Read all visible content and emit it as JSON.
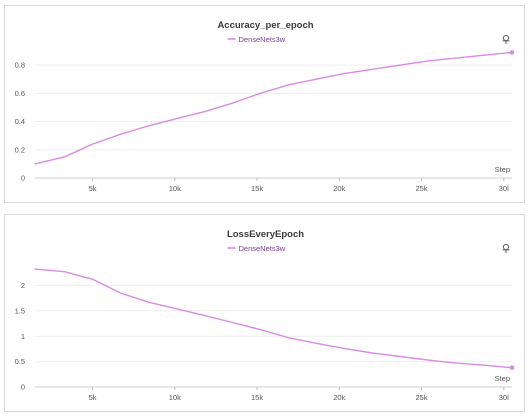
{
  "theme": {
    "series_color": "#d98be3",
    "legend_text_color": "#7a3f98"
  },
  "panels": [
    {
      "pin_icon": "pin-icon"
    },
    {
      "pin_icon": "pin-icon"
    }
  ],
  "chart_data": [
    {
      "type": "line",
      "title": "Accuracy_per_epoch",
      "xlabel": "Step",
      "ylabel": "",
      "xlim": [
        1500,
        30500
      ],
      "ylim": [
        0,
        0.9
      ],
      "x_ticks": [
        5000,
        10000,
        15000,
        20000,
        25000,
        30000
      ],
      "x_tick_labels": [
        "5k",
        "10k",
        "15k",
        "20k",
        "25k",
        "30l"
      ],
      "y_ticks": [
        0,
        0.2,
        0.4,
        0.6,
        0.8
      ],
      "y_tick_labels": [
        "0",
        "0.2",
        "0.4",
        "0.6",
        "0.8"
      ],
      "grid": true,
      "legend": "top-center",
      "series": [
        {
          "name": "DenseNets3w",
          "x": [
            1500,
            3300,
            5000,
            6700,
            8400,
            10100,
            11800,
            13500,
            15200,
            16900,
            18600,
            20300,
            22000,
            23700,
            25400,
            27100,
            28800,
            30500
          ],
          "y": [
            0.1,
            0.15,
            0.24,
            0.31,
            0.37,
            0.42,
            0.47,
            0.53,
            0.6,
            0.66,
            0.7,
            0.74,
            0.77,
            0.8,
            0.83,
            0.85,
            0.87,
            0.89
          ]
        }
      ]
    },
    {
      "type": "line",
      "title": "LossEveryEpoch",
      "xlabel": "Step",
      "ylabel": "",
      "xlim": [
        1500,
        30500
      ],
      "ylim": [
        0,
        2.5
      ],
      "x_ticks": [
        5000,
        10000,
        15000,
        20000,
        25000,
        30000
      ],
      "x_tick_labels": [
        "5k",
        "10k",
        "15k",
        "20k",
        "25k",
        "30l"
      ],
      "y_ticks": [
        0,
        0.5,
        1,
        1.5,
        2
      ],
      "y_tick_labels": [
        "0",
        "0.5",
        "1",
        "1.5",
        "2"
      ],
      "grid": true,
      "legend": "top-center",
      "series": [
        {
          "name": "DenseNets3w",
          "x": [
            1500,
            3300,
            5000,
            6700,
            8400,
            10100,
            11800,
            13500,
            15200,
            16900,
            18600,
            20300,
            22000,
            23700,
            25400,
            27100,
            28800,
            30500
          ],
          "y": [
            2.32,
            2.27,
            2.12,
            1.85,
            1.67,
            1.54,
            1.41,
            1.27,
            1.13,
            0.97,
            0.86,
            0.76,
            0.67,
            0.6,
            0.53,
            0.47,
            0.43,
            0.38
          ]
        }
      ]
    }
  ]
}
